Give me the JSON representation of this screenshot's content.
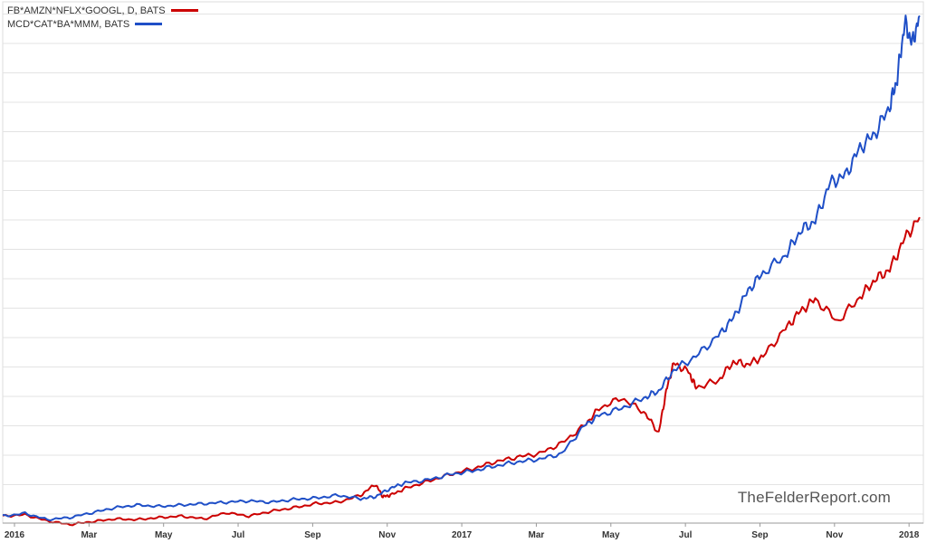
{
  "chart_data": {
    "type": "line",
    "title": "",
    "xlabel": "",
    "ylabel": "",
    "x_tick_labels": [
      "2016",
      "Mar",
      "May",
      "Jul",
      "Sep",
      "Nov",
      "2017",
      "Mar",
      "May",
      "Jul",
      "Sep",
      "Nov",
      "2018"
    ],
    "ylim": [
      0.9,
      8.4
    ],
    "grid": true,
    "legend_position": "top-left",
    "series": [
      {
        "name": "FB*AMZN*NFLX*GOOGL, D, BATS",
        "color": "#cc0000",
        "x": [
          0,
          0.3,
          0.6,
          0.9,
          1.2,
          1.5,
          1.8,
          2.1,
          2.4,
          2.7,
          3.0,
          3.3,
          3.6,
          3.9,
          4.2,
          4.5,
          4.8,
          5.0,
          5.1,
          5.2,
          5.4,
          5.7,
          6.0,
          6.3,
          6.6,
          6.9,
          7.2,
          7.5,
          7.8,
          8.0,
          8.3,
          8.6,
          8.8,
          8.9,
          9.0,
          9.2,
          9.3,
          9.6,
          9.8,
          10.0,
          10.2,
          10.5,
          10.7,
          10.9,
          11.2,
          11.5,
          11.7,
          11.9,
          12.1,
          12.3
        ],
        "values": [
          1.0,
          1.02,
          0.93,
          0.88,
          0.92,
          0.96,
          0.95,
          0.98,
          1.0,
          0.96,
          1.05,
          1.0,
          1.07,
          1.12,
          1.18,
          1.2,
          1.3,
          1.46,
          1.28,
          1.3,
          1.4,
          1.5,
          1.6,
          1.68,
          1.78,
          1.85,
          1.9,
          2.05,
          2.3,
          2.55,
          2.7,
          2.5,
          2.2,
          2.8,
          3.2,
          3.08,
          2.85,
          2.95,
          3.22,
          3.18,
          3.3,
          3.7,
          3.95,
          4.12,
          3.8,
          4.15,
          4.4,
          4.55,
          5.0,
          5.3
        ]
      },
      {
        "name": "MCD*CAT*BA*MMM, BATS",
        "color": "#1f4fc7",
        "x": [
          0,
          0.3,
          0.6,
          0.9,
          1.2,
          1.5,
          1.8,
          2.1,
          2.4,
          2.7,
          3.0,
          3.3,
          3.6,
          3.9,
          4.2,
          4.5,
          4.8,
          5.0,
          5.2,
          5.4,
          5.7,
          6.0,
          6.3,
          6.6,
          6.9,
          7.2,
          7.5,
          7.8,
          8.0,
          8.3,
          8.6,
          8.8,
          9.0,
          9.3,
          9.6,
          9.8,
          10.0,
          10.2,
          10.5,
          10.7,
          10.9,
          11.1,
          11.3,
          11.5,
          11.7,
          11.9,
          12.0,
          12.1,
          12.2,
          12.3
        ],
        "values": [
          1.0,
          1.04,
          0.95,
          0.98,
          1.05,
          1.12,
          1.16,
          1.14,
          1.16,
          1.18,
          1.2,
          1.22,
          1.2,
          1.24,
          1.26,
          1.3,
          1.25,
          1.28,
          1.4,
          1.48,
          1.52,
          1.6,
          1.65,
          1.72,
          1.78,
          1.82,
          1.9,
          2.3,
          2.45,
          2.55,
          2.7,
          2.8,
          3.1,
          3.3,
          3.6,
          3.85,
          4.25,
          4.5,
          4.75,
          5.1,
          5.25,
          5.8,
          5.9,
          6.3,
          6.5,
          6.9,
          7.3,
          8.1,
          7.8,
          8.2
        ]
      }
    ]
  },
  "watermark": "TheFelderReport.com"
}
